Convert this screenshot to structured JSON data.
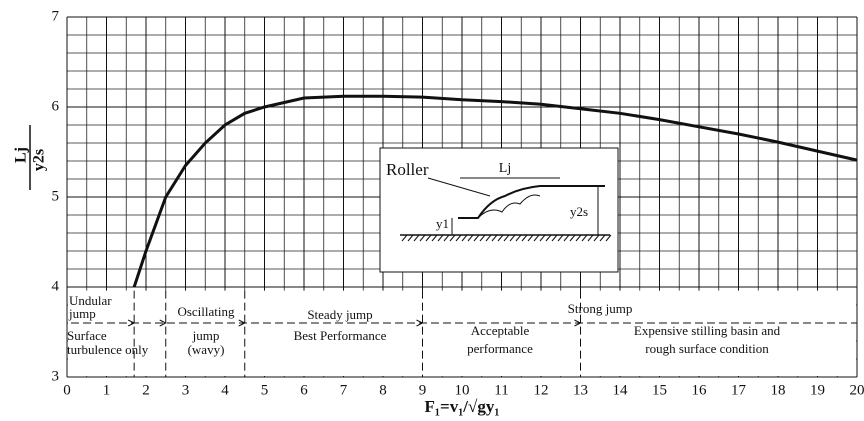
{
  "chart_data": {
    "type": "line",
    "x_label": "F₁=v₁/√gy₁",
    "y_label": {
      "numerator": "Lj",
      "denominator": "y2s"
    },
    "x": [
      1.7,
      2,
      2.5,
      3,
      3.5,
      4,
      4.5,
      5,
      6,
      7,
      8,
      9,
      10,
      11,
      12,
      13,
      14,
      15,
      16,
      17,
      18,
      19,
      20
    ],
    "values": [
      4.0,
      4.4,
      5.0,
      5.35,
      5.6,
      5.8,
      5.93,
      6.0,
      6.1,
      6.12,
      6.12,
      6.11,
      6.08,
      6.06,
      6.03,
      5.98,
      5.93,
      5.86,
      5.78,
      5.7,
      5.61,
      5.51,
      5.41
    ],
    "color": "#111111",
    "xlim": [
      0,
      20
    ],
    "ylim": [
      3,
      7
    ],
    "xticks": [
      0,
      1,
      2,
      3,
      4,
      5,
      6,
      7,
      8,
      9,
      10,
      11,
      12,
      13,
      14,
      15,
      16,
      17,
      18,
      19,
      20
    ],
    "yticks": [
      3,
      4,
      5,
      6,
      7
    ],
    "x_minor_step": 0.5,
    "y_minor_step": 0.2,
    "grid": true,
    "region_bounds": [
      1.7,
      2.5,
      4.5,
      9,
      13
    ],
    "annotations": [
      "Undular",
      "jump",
      "Surface",
      "turbulence only",
      "Oscillating",
      "jump",
      "(wavy)",
      "Steady jump",
      "Best Performance",
      "Strong jump",
      "Acceptable",
      "performance",
      "Expensive stilling basin and",
      "rough surface condition"
    ],
    "inset": {
      "roller": "Roller",
      "length": "Lj",
      "depth1": "y1",
      "depth2": "y2s"
    }
  }
}
